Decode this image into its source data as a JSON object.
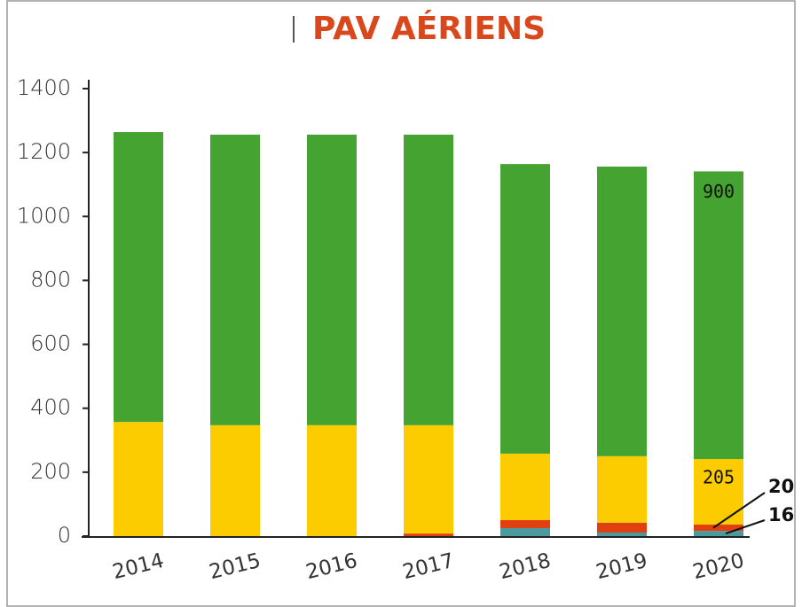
{
  "chart_data": {
    "type": "stacked_bar",
    "title": "PAV AÉRIENS",
    "categories": [
      "2014",
      "2015",
      "2016",
      "2017",
      "2018",
      "2019",
      "2020"
    ],
    "series": [
      {
        "color": "#4a9aa0",
        "values": [
          0,
          0,
          0,
          0,
          25,
          11,
          16
        ]
      },
      {
        "color": "#e0400f",
        "values": [
          0,
          0,
          0,
          8,
          25,
          31,
          20
        ]
      },
      {
        "color": "#fccc00",
        "values": [
          357,
          347,
          347,
          339,
          208,
          208,
          205
        ]
      },
      {
        "color": "#44a331",
        "values": [
          907,
          909,
          909,
          909,
          906,
          906,
          900
        ]
      }
    ],
    "ylim": [
      0,
      1400
    ],
    "yticks": [
      0,
      200,
      400,
      600,
      800,
      1000,
      1200,
      1400
    ]
  }
}
